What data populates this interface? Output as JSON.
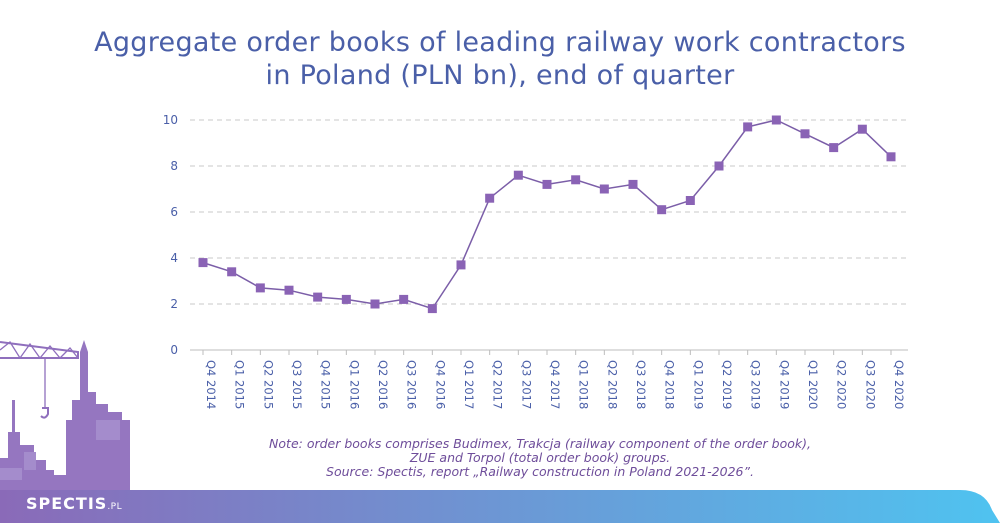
{
  "title": {
    "line1": "Aggregate order books of leading railway work contractors",
    "line2": "in Poland (PLN bn), end of quarter"
  },
  "note": {
    "line1": "Note: order books comprises Budimex, Trakcja (railway component of the order book),",
    "line2": "ZUE and Torpol (total order book) groups.",
    "line3": "Source: Spectis, report „Railway construction in Poland 2021-2026”."
  },
  "brand": {
    "name": "SPECTIS",
    "suffix": ".PL"
  },
  "colors": {
    "title": "#4a5fa8",
    "line": "#7b5ea8",
    "marker": "#8a63b5",
    "axis_text": "#4a5fa8",
    "grid": "#c8c8c8",
    "banner_start": "#8a6ab8",
    "banner_end": "#4fc3f0"
  },
  "chart_data": {
    "type": "line",
    "categories": [
      "Q4 2014",
      "Q1 2015",
      "Q2 2015",
      "Q3 2015",
      "Q4 2015",
      "Q1 2016",
      "Q2 2016",
      "Q3 2016",
      "Q4 2016",
      "Q1 2017",
      "Q2 2017",
      "Q3 2017",
      "Q4 2017",
      "Q1 2018",
      "Q2 2018",
      "Q3 2018",
      "Q4 2018",
      "Q1 2019",
      "Q2 2019",
      "Q3 2019",
      "Q4 2019",
      "Q1 2020",
      "Q2 2020",
      "Q3 2020",
      "Q4 2020"
    ],
    "values": [
      3.8,
      3.4,
      2.7,
      2.6,
      2.3,
      2.2,
      2.0,
      2.2,
      1.8,
      3.7,
      6.6,
      7.6,
      7.2,
      7.4,
      7.0,
      7.2,
      6.1,
      6.5,
      8.0,
      9.7,
      10.0,
      9.4,
      8.8,
      9.6,
      8.4
    ],
    "ylim": [
      0,
      10
    ],
    "yticks": [
      "0",
      "2",
      "4",
      "6",
      "8",
      "10"
    ],
    "grid": true,
    "marker": "square"
  }
}
